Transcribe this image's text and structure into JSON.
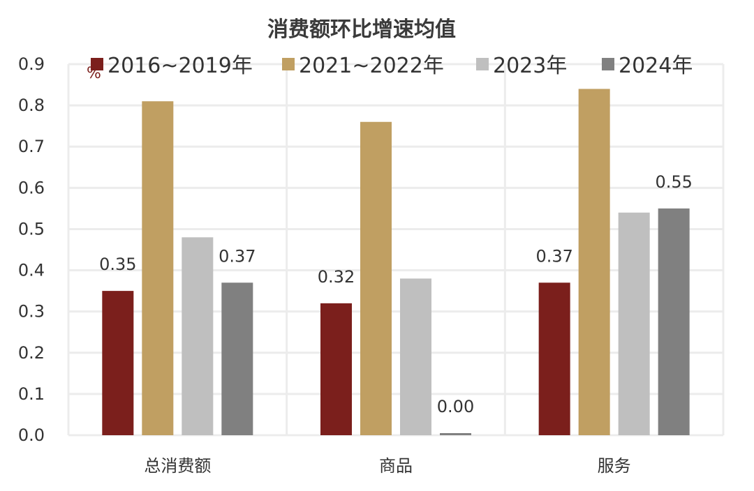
{
  "chart_data": {
    "type": "bar",
    "title": "消费额环比增速均值",
    "unit": "%",
    "categories": [
      "总消费额",
      "商品",
      "服务"
    ],
    "series": [
      {
        "name": "2016~2019年",
        "color": "#7b1f1c",
        "values": [
          0.35,
          0.32,
          0.37
        ]
      },
      {
        "name": "2021~2022年",
        "color": "#c09f62",
        "values": [
          0.81,
          0.76,
          0.84
        ]
      },
      {
        "name": "2023年",
        "color": "#bfbfbf",
        "values": [
          0.48,
          0.38,
          0.54
        ]
      },
      {
        "name": "2024年",
        "color": "#808080",
        "values": [
          0.37,
          0.0,
          0.55
        ]
      }
    ],
    "data_labels": [
      {
        "series": 0,
        "category": 0,
        "text": "0.35"
      },
      {
        "series": 3,
        "category": 0,
        "text": "0.37"
      },
      {
        "series": 0,
        "category": 1,
        "text": "0.32"
      },
      {
        "series": 3,
        "category": 1,
        "text": "0.00"
      },
      {
        "series": 0,
        "category": 2,
        "text": "0.37"
      },
      {
        "series": 3,
        "category": 2,
        "text": "0.55"
      }
    ],
    "ylim": [
      0,
      0.9
    ],
    "yticks": [
      "0.0",
      "0.1",
      "0.2",
      "0.3",
      "0.4",
      "0.5",
      "0.6",
      "0.7",
      "0.8",
      "0.9"
    ],
    "grid": true,
    "legend_position": "top"
  }
}
